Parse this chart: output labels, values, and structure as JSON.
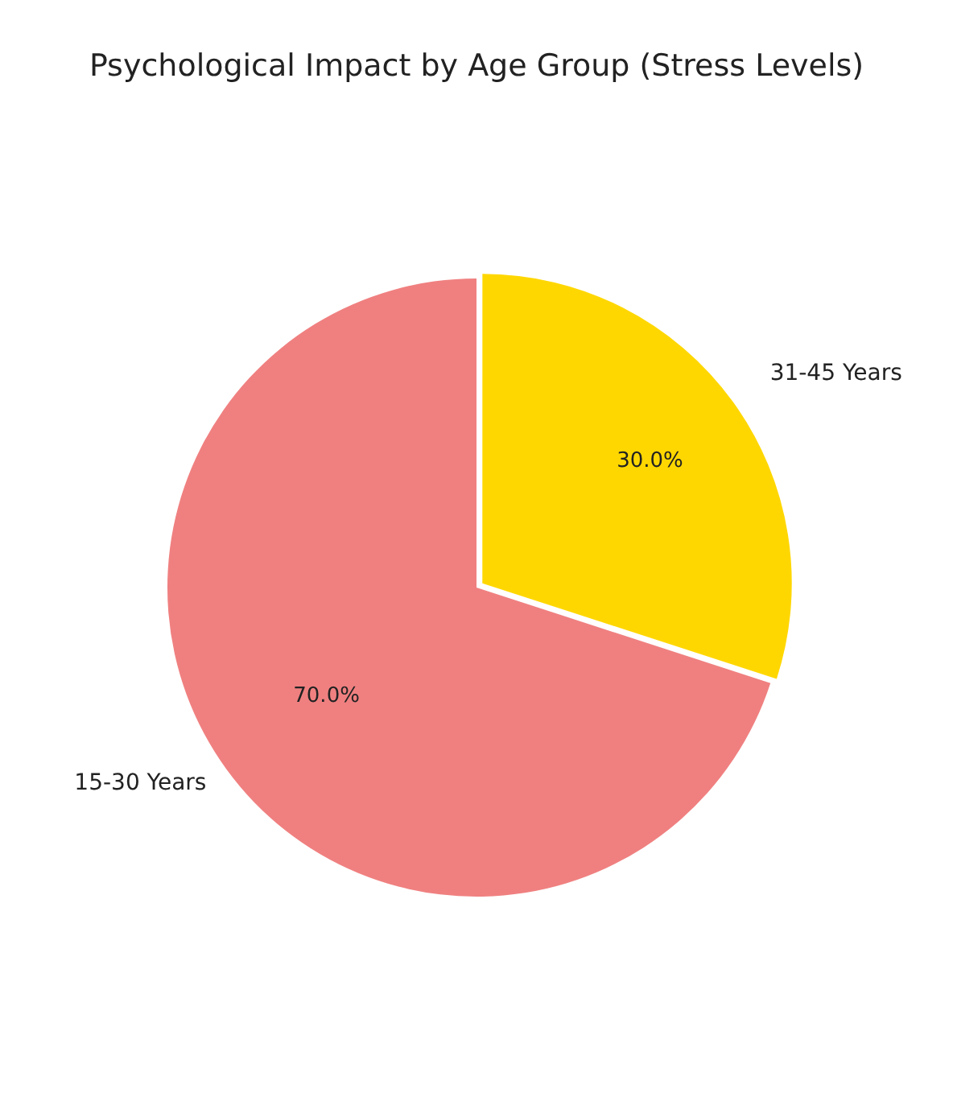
{
  "chart_data": {
    "type": "pie",
    "title": "Psychological Impact by Age Group (Stress Levels)",
    "categories": [
      "31-45 Years",
      "15-30 Years"
    ],
    "values": [
      30,
      70
    ],
    "colors": [
      "#ffd700",
      "#f08080"
    ],
    "value_labels": [
      "30.0%",
      "70.0%"
    ],
    "legend": false
  }
}
